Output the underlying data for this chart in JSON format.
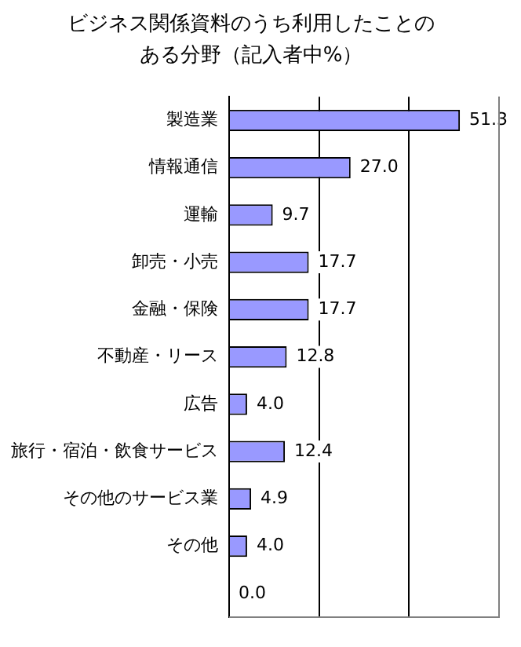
{
  "chart_data": {
    "type": "bar",
    "orientation": "horizontal",
    "title": "ビジネス関係資料のうち利用したことのある分野（記入者中%）",
    "categories": [
      "製造業",
      "情報通信",
      "運輸",
      "卸売・小売",
      "金融・保険",
      "不動産・リース",
      "広告",
      "旅行・宿泊・飲食サービス",
      "その他のサービス業",
      "その他",
      null
    ],
    "values": [
      51.3,
      27.0,
      9.7,
      17.7,
      17.7,
      12.8,
      4.0,
      12.4,
      4.9,
      4.0,
      0.0
    ],
    "value_labels": [
      "51.3",
      "27.0",
      "9.7",
      "17.7",
      "17.7",
      "12.8",
      "4.0",
      "12.4",
      "4.9",
      "4.0",
      "0.0"
    ],
    "color": "#9999ff",
    "xlim": [
      0,
      60
    ],
    "xticks": [
      {
        "value": 0,
        "label": null
      },
      {
        "value": 20,
        "label": null
      },
      {
        "value": 40,
        "label": null
      },
      {
        "value": 60,
        "label": null
      }
    ],
    "grid": "x",
    "tick_labels": "y",
    "legend": false
  }
}
